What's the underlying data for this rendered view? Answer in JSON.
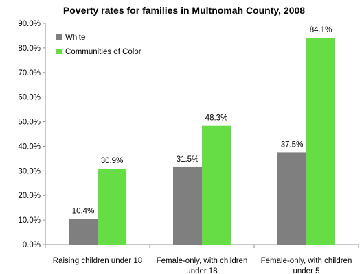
{
  "chart_data": {
    "type": "bar",
    "title": "Poverty rates for families in Multnomah County, 2008",
    "xlabel": "",
    "ylabel": "",
    "ylim": [
      0,
      90
    ],
    "y_ticks": [
      "0.0%",
      "10.0%",
      "20.0%",
      "30.0%",
      "40.0%",
      "50.0%",
      "60.0%",
      "70.0%",
      "80.0%",
      "90.0%"
    ],
    "grid": false,
    "legend_position": "top-left",
    "categories": [
      [
        "Raising children under 18"
      ],
      [
        "Female-only, with children",
        "under 18"
      ],
      [
        "Female-only, with children",
        "under 5"
      ]
    ],
    "series": [
      {
        "name": "White",
        "color": "#7f7f7f",
        "values": [
          10.4,
          31.5,
          37.5
        ],
        "labels": [
          "10.4%",
          "31.5%",
          "37.5%"
        ]
      },
      {
        "name": "Communities of Color",
        "color": "#66dd44",
        "values": [
          30.9,
          48.3,
          84.1
        ],
        "labels": [
          "30.9%",
          "48.3%",
          "84.1%"
        ]
      }
    ]
  }
}
